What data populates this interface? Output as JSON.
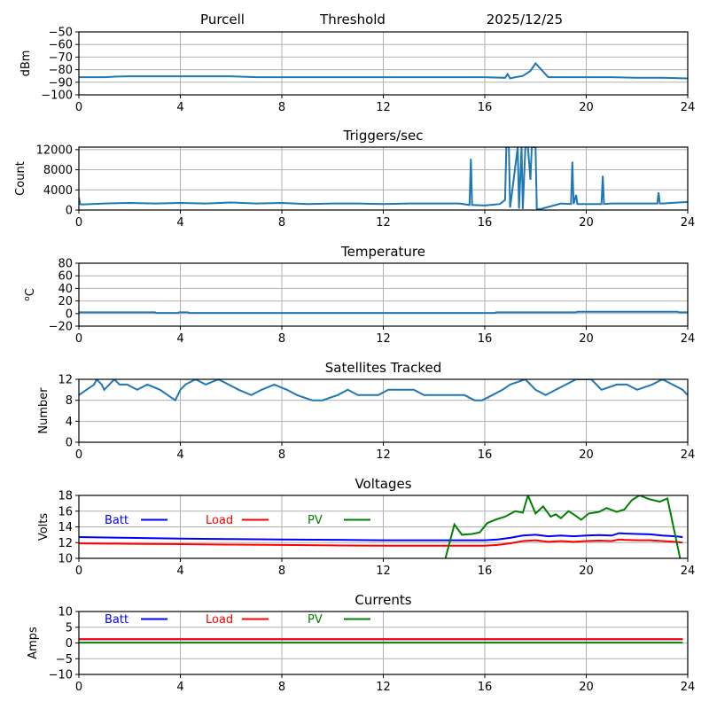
{
  "header": {
    "station": "Purcell",
    "mode": "Threshold",
    "date": "2025/12/25"
  },
  "chart_data": [
    {
      "type": "line",
      "title": "",
      "ylabel": "dBm",
      "xlim": [
        0,
        24
      ],
      "ylim": [
        -100,
        -50
      ],
      "xticks": [
        "0",
        "4",
        "8",
        "12",
        "16",
        "20",
        "24"
      ],
      "yticks": [
        "-50",
        "-60",
        "-70",
        "-80",
        "-90",
        "-100"
      ],
      "ytick_values": [
        -50,
        -60,
        -70,
        -80,
        -90,
        -100
      ],
      "grid": true,
      "color": "#1f77b4",
      "series": [
        {
          "name": "Threshold",
          "x": [
            0,
            0.5,
            1,
            1.5,
            2,
            3,
            4,
            5,
            6,
            7,
            8,
            9,
            10,
            11,
            12,
            13,
            14,
            15,
            16,
            16.8,
            16.9,
            17.0,
            17.2,
            17.5,
            17.8,
            18.0,
            18.5,
            19,
            20,
            21,
            22,
            23,
            24
          ],
          "y": [
            -86,
            -86,
            -86,
            -85.5,
            -85.3,
            -85.3,
            -85.3,
            -85.3,
            -85.3,
            -86,
            -86,
            -86,
            -86,
            -86,
            -86,
            -86,
            -86,
            -86,
            -86,
            -86.5,
            -83.5,
            -87,
            -86,
            -85,
            -81,
            -75,
            -86,
            -86,
            -86,
            -86,
            -86.5,
            -86.5,
            -87
          ]
        }
      ]
    },
    {
      "type": "line",
      "title": "Triggers/sec",
      "ylabel": "Count",
      "xlim": [
        0,
        24
      ],
      "ylim": [
        0,
        12500
      ],
      "xticks": [
        "0",
        "4",
        "8",
        "12",
        "16",
        "20",
        "24"
      ],
      "yticks": [
        "12000",
        "8000",
        "4000",
        "0"
      ],
      "ytick_values": [
        12000,
        8000,
        4000,
        0
      ],
      "grid": true,
      "color": "#1f77b4",
      "series": [
        {
          "name": "Triggers",
          "x": [
            0,
            0.05,
            0.1,
            1,
            2,
            3,
            4,
            5,
            6,
            7,
            8,
            9,
            10,
            11,
            12,
            13,
            14,
            15,
            15.4,
            15.45,
            15.5,
            16,
            16.6,
            16.8,
            16.85,
            16.95,
            17.0,
            17.3,
            17.35,
            17.45,
            17.5,
            17.6,
            17.7,
            17.8,
            17.85,
            17.9,
            18.0,
            18.05,
            18.1,
            18.2,
            19,
            19.4,
            19.45,
            19.5,
            19.6,
            19.65,
            20,
            20.6,
            20.65,
            20.7,
            21,
            22,
            22.8,
            22.85,
            22.9,
            23,
            24
          ],
          "y": [
            2500,
            1200,
            1100,
            1300,
            1400,
            1300,
            1400,
            1300,
            1500,
            1300,
            1400,
            1200,
            1300,
            1300,
            1200,
            1300,
            1300,
            1300,
            1000,
            10200,
            1000,
            900,
            1200,
            2000,
            12500,
            12500,
            500,
            12500,
            300,
            12500,
            200,
            12500,
            12500,
            6000,
            12500,
            12500,
            12500,
            200,
            200,
            200,
            1300,
            1200,
            9600,
            1200,
            3000,
            1200,
            1200,
            1200,
            6800,
            1200,
            1300,
            1300,
            1300,
            3500,
            1300,
            1300,
            1600
          ]
        }
      ]
    },
    {
      "type": "line",
      "title": "Temperature",
      "ylabel": "°C",
      "xlim": [
        0,
        24
      ],
      "ylim": [
        -20,
        80
      ],
      "xticks": [
        "0",
        "4",
        "8",
        "12",
        "16",
        "20",
        "24"
      ],
      "yticks": [
        "80",
        "60",
        "40",
        "20",
        "0",
        "-20"
      ],
      "ytick_values": [
        80,
        60,
        40,
        20,
        0,
        -20
      ],
      "grid": true,
      "color": "#1f77b4",
      "series": [
        {
          "name": "Temperature",
          "x": [
            0,
            3.0,
            3.05,
            3.9,
            3.95,
            4.3,
            4.35,
            16.4,
            16.45,
            19.6,
            19.65,
            23.6,
            23.65,
            24
          ],
          "y": [
            2,
            2,
            1,
            1,
            2,
            2,
            1,
            1,
            2,
            2,
            3,
            3,
            2,
            2
          ]
        }
      ]
    },
    {
      "type": "line",
      "title": "Satellites Tracked",
      "ylabel": "Number",
      "xlim": [
        0,
        24
      ],
      "ylim": [
        0,
        12
      ],
      "xticks": [
        "0",
        "4",
        "8",
        "12",
        "16",
        "20",
        "24"
      ],
      "yticks": [
        "12",
        "8",
        "4",
        "0"
      ],
      "ytick_values": [
        12,
        8,
        4,
        0
      ],
      "grid": true,
      "color": "#1f77b4",
      "series": [
        {
          "name": "Satellites",
          "x": [
            0,
            0.3,
            0.6,
            0.7,
            0.9,
            1.0,
            1.2,
            1.4,
            1.6,
            1.9,
            2.3,
            2.7,
            3.2,
            3.5,
            3.8,
            4.0,
            4.2,
            4.6,
            5.0,
            5.5,
            5.9,
            6.3,
            6.8,
            7.2,
            7.7,
            8.2,
            8.6,
            9.2,
            9.6,
            10.2,
            10.6,
            11.0,
            11.4,
            11.8,
            12.2,
            12.6,
            13.2,
            13.6,
            14.2,
            14.6,
            15.2,
            15.6,
            15.9,
            16.3,
            16.7,
            17.0,
            17.6,
            18.0,
            18.4,
            18.8,
            19.2,
            19.6,
            20.2,
            20.6,
            21.2,
            21.6,
            22.0,
            22.6,
            23.0,
            23.4,
            23.8,
            24
          ],
          "y": [
            9,
            10,
            11,
            12,
            11,
            10,
            11,
            12,
            11,
            11,
            10,
            11,
            10,
            9,
            8,
            10,
            11,
            12,
            11,
            12,
            11,
            10,
            9,
            10,
            11,
            10,
            9,
            8,
            8,
            9,
            10,
            9,
            9,
            9,
            10,
            10,
            10,
            9,
            9,
            9,
            9,
            8,
            8,
            9,
            10,
            11,
            12,
            10,
            9,
            10,
            11,
            12,
            12,
            10,
            11,
            11,
            10,
            11,
            12,
            11,
            10,
            9
          ]
        }
      ]
    },
    {
      "type": "line",
      "title": "Voltages",
      "ylabel": "Volts",
      "xlim": [
        0,
        24
      ],
      "ylim": [
        10,
        18
      ],
      "xticks": [
        "0",
        "4",
        "8",
        "12",
        "16",
        "20",
        "24"
      ],
      "yticks": [
        "18",
        "16",
        "14",
        "12",
        "10"
      ],
      "ytick_values": [
        18,
        16,
        14,
        12,
        10
      ],
      "grid": true,
      "legend": "top-left",
      "series": [
        {
          "name": "Batt",
          "color": "#0000ff",
          "x": [
            0,
            2,
            4,
            6,
            8,
            10,
            12,
            14,
            16,
            16.5,
            17,
            17.5,
            18,
            18.5,
            19,
            19.5,
            20,
            20.5,
            21,
            21.3,
            21.5,
            22,
            22.5,
            23,
            23.5,
            23.8
          ],
          "y": [
            12.7,
            12.6,
            12.5,
            12.45,
            12.4,
            12.35,
            12.3,
            12.3,
            12.3,
            12.4,
            12.6,
            12.9,
            13.0,
            12.8,
            12.9,
            12.8,
            12.9,
            12.95,
            12.9,
            13.2,
            13.15,
            13.1,
            13.05,
            12.9,
            12.8,
            12.7
          ]
        },
        {
          "name": "Load",
          "color": "#ff0000",
          "x": [
            0,
            2,
            4,
            6,
            8,
            10,
            12,
            14,
            16,
            16.5,
            17,
            17.5,
            18,
            18.5,
            19,
            19.5,
            20,
            20.5,
            21,
            21.3,
            21.5,
            22,
            22.5,
            23,
            23.5,
            23.8
          ],
          "y": [
            11.9,
            11.85,
            11.8,
            11.75,
            11.7,
            11.65,
            11.6,
            11.6,
            11.6,
            11.7,
            11.9,
            12.2,
            12.3,
            12.1,
            12.2,
            12.1,
            12.2,
            12.25,
            12.2,
            12.4,
            12.35,
            12.3,
            12.3,
            12.2,
            12.1,
            12.0
          ]
        },
        {
          "name": "PV",
          "color": "#008000",
          "x": [
            14.45,
            14.8,
            15.1,
            15.5,
            15.8,
            16.1,
            16.5,
            16.8,
            17.2,
            17.5,
            17.7,
            18.0,
            18.3,
            18.6,
            18.8,
            19.0,
            19.3,
            19.5,
            19.8,
            20.1,
            20.5,
            20.8,
            21.2,
            21.5,
            21.8,
            22.1,
            22.5,
            22.9,
            23.2,
            23.7
          ],
          "y": [
            10,
            14.3,
            13.0,
            13.1,
            13.3,
            14.5,
            15.0,
            15.3,
            16.0,
            15.8,
            18.0,
            15.7,
            16.6,
            15.3,
            15.6,
            15.1,
            16.0,
            15.6,
            14.9,
            15.7,
            15.9,
            16.4,
            15.9,
            16.2,
            17.4,
            18.0,
            17.5,
            17.2,
            17.6,
            10
          ]
        }
      ]
    },
    {
      "type": "line",
      "title": "Currents",
      "ylabel": "Amps",
      "xlim": [
        0,
        24
      ],
      "ylim": [
        -10,
        10
      ],
      "xticks": [
        "0",
        "4",
        "8",
        "12",
        "16",
        "20",
        "24"
      ],
      "yticks": [
        "10",
        "5",
        "0",
        "-5",
        "-10"
      ],
      "ytick_values": [
        10,
        5,
        0,
        -5,
        -10
      ],
      "grid": true,
      "legend": "top-left",
      "series": [
        {
          "name": "Batt",
          "color": "#0000ff",
          "x": [
            0,
            23.8
          ],
          "y": [
            1.2,
            1.2
          ]
        },
        {
          "name": "Load",
          "color": "#ff0000",
          "x": [
            0,
            23.8
          ],
          "y": [
            1.2,
            1.2
          ]
        },
        {
          "name": "PV",
          "color": "#008000",
          "x": [
            0,
            23.8
          ],
          "y": [
            0.1,
            0.1
          ]
        }
      ]
    }
  ]
}
